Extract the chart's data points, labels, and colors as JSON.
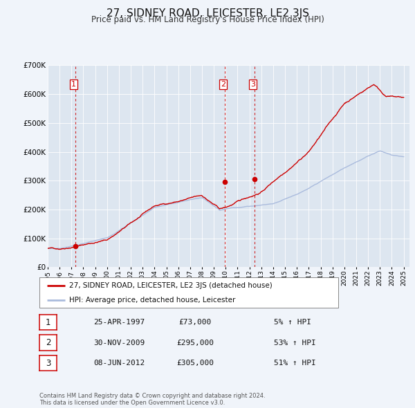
{
  "title": "27, SIDNEY ROAD, LEICESTER, LE2 3JS",
  "subtitle": "Price paid vs. HM Land Registry's House Price Index (HPI)",
  "title_fontsize": 11,
  "subtitle_fontsize": 8.5,
  "background_color": "#f0f4fa",
  "plot_bg_color": "#dde6f0",
  "ylim": [
    0,
    700000
  ],
  "yticks": [
    0,
    100000,
    200000,
    300000,
    400000,
    500000,
    600000,
    700000
  ],
  "ytick_labels": [
    "£0",
    "£100K",
    "£200K",
    "£300K",
    "£400K",
    "£500K",
    "£600K",
    "£700K"
  ],
  "xlim_start": 1995.0,
  "xlim_end": 2025.5,
  "sale_color": "#cc0000",
  "hpi_color": "#aabbdd",
  "marker_color": "#cc0000",
  "vline_color": "#cc0000",
  "purchases": [
    {
      "num": 1,
      "date": "25-APR-1997",
      "year": 1997.31,
      "price": 73000,
      "pct": "5%"
    },
    {
      "num": 2,
      "date": "30-NOV-2009",
      "year": 2009.92,
      "price": 295000,
      "pct": "53%"
    },
    {
      "num": 3,
      "date": "08-JUN-2012",
      "year": 2012.44,
      "price": 305000,
      "pct": "51%"
    }
  ],
  "legend_label_sale": "27, SIDNEY ROAD, LEICESTER, LE2 3JS (detached house)",
  "legend_label_hpi": "HPI: Average price, detached house, Leicester",
  "footnote": "Contains HM Land Registry data © Crown copyright and database right 2024.\nThis data is licensed under the Open Government Licence v3.0.",
  "table_rows": [
    {
      "num": 1,
      "date": "25-APR-1997",
      "price": "£73,000",
      "pct": "5% ↑ HPI"
    },
    {
      "num": 2,
      "date": "30-NOV-2009",
      "price": "£295,000",
      "pct": "53% ↑ HPI"
    },
    {
      "num": 3,
      "date": "08-JUN-2012",
      "price": "£305,000",
      "pct": "51% ↑ HPI"
    }
  ]
}
